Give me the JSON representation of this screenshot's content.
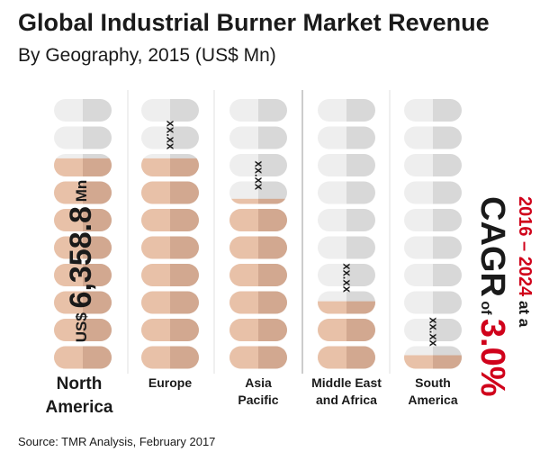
{
  "title": "Global Industrial Burner Market Revenue",
  "subtitle": "By Geography, 2015 (US$ Mn)",
  "source": "Source: TMR Analysis, February 2017",
  "chart_data": {
    "type": "bar",
    "categories": [
      "North America",
      "Europe",
      "Asia Pacific",
      "Middle East and Africa",
      "South America"
    ],
    "category_lines": [
      [
        "North",
        "America"
      ],
      [
        "Europe"
      ],
      [
        "Asia",
        "Pacific"
      ],
      [
        "Middle East",
        "and Africa"
      ],
      [
        "South",
        "America"
      ]
    ],
    "fill_fractions": [
      0.78,
      0.78,
      0.63,
      0.25,
      0.05
    ],
    "value_labels": [
      "US$ 6,358.8 Mn",
      "xx.xx",
      "xx.xx",
      "xx.xx",
      "xx.xx"
    ],
    "na_label": {
      "prefix": "US$",
      "value": "6,358.8",
      "unit": "Mn"
    },
    "cagr": {
      "period": "2016 – 2024 at a",
      "label": "CAGR",
      "of": "of",
      "rate": "3.0%"
    },
    "colors": {
      "filled_light": "#e8c1a8",
      "filled_dark": "#d2a890",
      "empty_light": "#eeeeee",
      "empty_dark": "#d8d8d8",
      "accent": "#d0021b"
    }
  }
}
